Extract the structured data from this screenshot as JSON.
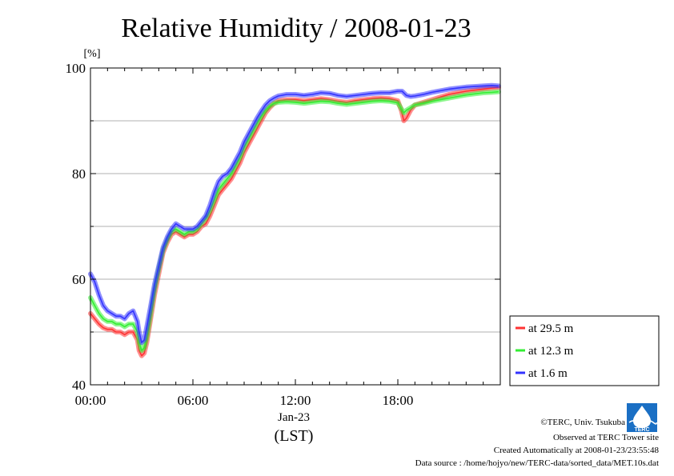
{
  "chart_data": {
    "type": "line",
    "title": "Relative Humidity / 2008-01-23",
    "ylabel": "[%]",
    "xlabel": "(LST)",
    "date_label": "Jan-23",
    "ylim": [
      40,
      100
    ],
    "xlim": [
      0,
      24
    ],
    "y_ticks": [
      40,
      60,
      80,
      100
    ],
    "x_ticks": [
      {
        "value": 0,
        "label": "00:00"
      },
      {
        "value": 6,
        "label": "06:00"
      },
      {
        "value": 12,
        "label": "12:00"
      },
      {
        "value": 18,
        "label": "18:00"
      }
    ],
    "grid": true,
    "legend_position": "right",
    "series": [
      {
        "name": "at 29.5 m",
        "color": "#ff3333",
        "points": [
          [
            0,
            53.5
          ],
          [
            0.25,
            52.5
          ],
          [
            0.5,
            51.5
          ],
          [
            0.75,
            50.8
          ],
          [
            1.0,
            50.5
          ],
          [
            1.25,
            50.5
          ],
          [
            1.5,
            50.0
          ],
          [
            1.75,
            50.0
          ],
          [
            2.0,
            49.5
          ],
          [
            2.25,
            50.0
          ],
          [
            2.5,
            50.0
          ],
          [
            2.75,
            48.5
          ],
          [
            2.85,
            46.5
          ],
          [
            3.0,
            45.5
          ],
          [
            3.15,
            46.0
          ],
          [
            3.3,
            48.0
          ],
          [
            3.5,
            52.0
          ],
          [
            3.75,
            57.0
          ],
          [
            4.0,
            61.0
          ],
          [
            4.25,
            65.0
          ],
          [
            4.5,
            67.0
          ],
          [
            4.75,
            68.5
          ],
          [
            5.0,
            69.0
          ],
          [
            5.25,
            68.5
          ],
          [
            5.5,
            68.0
          ],
          [
            5.75,
            68.5
          ],
          [
            6.0,
            68.5
          ],
          [
            6.25,
            69.0
          ],
          [
            6.5,
            70.0
          ],
          [
            6.75,
            70.5
          ],
          [
            7.0,
            72.0
          ],
          [
            7.25,
            74.0
          ],
          [
            7.5,
            76.0
          ],
          [
            7.75,
            77.0
          ],
          [
            8.0,
            78.0
          ],
          [
            8.25,
            79.0
          ],
          [
            8.5,
            80.5
          ],
          [
            8.75,
            82.0
          ],
          [
            9.0,
            84.0
          ],
          [
            9.25,
            85.5
          ],
          [
            9.5,
            87.0
          ],
          [
            9.75,
            88.5
          ],
          [
            10.0,
            90.0
          ],
          [
            10.25,
            91.5
          ],
          [
            10.5,
            92.5
          ],
          [
            10.75,
            93.3
          ],
          [
            11.0,
            93.8
          ],
          [
            11.5,
            94.0
          ],
          [
            12.0,
            94.0
          ],
          [
            12.5,
            93.8
          ],
          [
            13.0,
            94.0
          ],
          [
            13.5,
            94.2
          ],
          [
            14.0,
            94.0
          ],
          [
            14.5,
            93.7
          ],
          [
            15.0,
            93.5
          ],
          [
            15.5,
            93.8
          ],
          [
            16.0,
            94.0
          ],
          [
            16.5,
            94.2
          ],
          [
            17.0,
            94.3
          ],
          [
            17.5,
            94.2
          ],
          [
            18.0,
            93.8
          ],
          [
            18.2,
            92.0
          ],
          [
            18.35,
            90.0
          ],
          [
            18.5,
            90.5
          ],
          [
            18.75,
            92.0
          ],
          [
            19.0,
            93.0
          ],
          [
            19.5,
            93.5
          ],
          [
            20.0,
            94.0
          ],
          [
            20.5,
            94.5
          ],
          [
            21.0,
            95.0
          ],
          [
            21.5,
            95.3
          ],
          [
            22.0,
            95.6
          ],
          [
            22.5,
            95.8
          ],
          [
            23.0,
            96.0
          ],
          [
            23.5,
            96.2
          ],
          [
            23.9,
            96.3
          ]
        ]
      },
      {
        "name": "at 12.3 m",
        "color": "#33ee33",
        "points": [
          [
            0,
            56.5
          ],
          [
            0.25,
            55.0
          ],
          [
            0.5,
            53.5
          ],
          [
            0.75,
            52.5
          ],
          [
            1.0,
            52.0
          ],
          [
            1.25,
            52.0
          ],
          [
            1.5,
            51.5
          ],
          [
            1.75,
            51.5
          ],
          [
            2.0,
            51.0
          ],
          [
            2.25,
            51.5
          ],
          [
            2.5,
            51.5
          ],
          [
            2.75,
            50.0
          ],
          [
            2.85,
            48.0
          ],
          [
            3.0,
            46.5
          ],
          [
            3.15,
            47.0
          ],
          [
            3.3,
            49.0
          ],
          [
            3.5,
            53.0
          ],
          [
            3.75,
            58.0
          ],
          [
            4.0,
            62.0
          ],
          [
            4.25,
            65.5
          ],
          [
            4.5,
            67.5
          ],
          [
            4.75,
            69.0
          ],
          [
            5.0,
            69.5
          ],
          [
            5.25,
            69.0
          ],
          [
            5.5,
            68.5
          ],
          [
            5.75,
            69.0
          ],
          [
            6.0,
            69.0
          ],
          [
            6.25,
            69.5
          ],
          [
            6.5,
            70.5
          ],
          [
            6.75,
            71.5
          ],
          [
            7.0,
            73.0
          ],
          [
            7.25,
            75.0
          ],
          [
            7.5,
            77.0
          ],
          [
            7.75,
            78.0
          ],
          [
            8.0,
            79.0
          ],
          [
            8.25,
            80.0
          ],
          [
            8.5,
            81.5
          ],
          [
            8.75,
            83.0
          ],
          [
            9.0,
            85.0
          ],
          [
            9.25,
            86.5
          ],
          [
            9.5,
            88.0
          ],
          [
            9.75,
            89.5
          ],
          [
            10.0,
            90.8
          ],
          [
            10.25,
            92.0
          ],
          [
            10.5,
            92.8
          ],
          [
            10.75,
            93.3
          ],
          [
            11.0,
            93.5
          ],
          [
            11.5,
            93.6
          ],
          [
            12.0,
            93.5
          ],
          [
            12.5,
            93.3
          ],
          [
            13.0,
            93.5
          ],
          [
            13.5,
            93.7
          ],
          [
            14.0,
            93.6
          ],
          [
            14.5,
            93.3
          ],
          [
            15.0,
            93.1
          ],
          [
            15.5,
            93.3
          ],
          [
            16.0,
            93.5
          ],
          [
            16.5,
            93.7
          ],
          [
            17.0,
            93.8
          ],
          [
            17.5,
            93.7
          ],
          [
            18.0,
            93.4
          ],
          [
            18.2,
            92.3
          ],
          [
            18.35,
            91.5
          ],
          [
            18.5,
            92.0
          ],
          [
            18.75,
            92.5
          ],
          [
            19.0,
            93.0
          ],
          [
            19.5,
            93.3
          ],
          [
            20.0,
            93.7
          ],
          [
            20.5,
            94.0
          ],
          [
            21.0,
            94.3
          ],
          [
            21.5,
            94.6
          ],
          [
            22.0,
            94.9
          ],
          [
            22.5,
            95.1
          ],
          [
            23.0,
            95.3
          ],
          [
            23.5,
            95.4
          ],
          [
            23.9,
            95.5
          ]
        ]
      },
      {
        "name": "at 1.6 m",
        "color": "#3333ff",
        "points": [
          [
            0,
            61.0
          ],
          [
            0.25,
            59.5
          ],
          [
            0.5,
            57.0
          ],
          [
            0.75,
            55.0
          ],
          [
            1.0,
            54.0
          ],
          [
            1.25,
            53.5
          ],
          [
            1.5,
            53.0
          ],
          [
            1.75,
            53.0
          ],
          [
            2.0,
            52.5
          ],
          [
            2.25,
            53.5
          ],
          [
            2.5,
            54.0
          ],
          [
            2.75,
            52.0
          ],
          [
            2.85,
            50.0
          ],
          [
            3.0,
            48.0
          ],
          [
            3.15,
            48.5
          ],
          [
            3.3,
            51.0
          ],
          [
            3.5,
            54.5
          ],
          [
            3.75,
            59.0
          ],
          [
            4.0,
            62.5
          ],
          [
            4.25,
            66.0
          ],
          [
            4.5,
            68.0
          ],
          [
            4.75,
            69.5
          ],
          [
            5.0,
            70.5
          ],
          [
            5.25,
            70.0
          ],
          [
            5.5,
            69.5
          ],
          [
            5.75,
            69.5
          ],
          [
            6.0,
            69.5
          ],
          [
            6.25,
            70.0
          ],
          [
            6.5,
            71.0
          ],
          [
            6.75,
            72.0
          ],
          [
            7.0,
            74.0
          ],
          [
            7.25,
            76.5
          ],
          [
            7.5,
            78.5
          ],
          [
            7.75,
            79.5
          ],
          [
            8.0,
            80.0
          ],
          [
            8.25,
            81.0
          ],
          [
            8.5,
            82.5
          ],
          [
            8.75,
            84.0
          ],
          [
            9.0,
            86.0
          ],
          [
            9.25,
            87.5
          ],
          [
            9.5,
            89.0
          ],
          [
            9.75,
            90.5
          ],
          [
            10.0,
            91.8
          ],
          [
            10.25,
            93.0
          ],
          [
            10.5,
            93.8
          ],
          [
            10.75,
            94.3
          ],
          [
            11.0,
            94.7
          ],
          [
            11.5,
            95.0
          ],
          [
            12.0,
            95.0
          ],
          [
            12.5,
            94.8
          ],
          [
            13.0,
            95.0
          ],
          [
            13.5,
            95.3
          ],
          [
            14.0,
            95.2
          ],
          [
            14.5,
            94.8
          ],
          [
            15.0,
            94.6
          ],
          [
            15.5,
            94.8
          ],
          [
            16.0,
            95.0
          ],
          [
            16.5,
            95.2
          ],
          [
            17.0,
            95.3
          ],
          [
            17.5,
            95.3
          ],
          [
            18.0,
            95.6
          ],
          [
            18.25,
            95.6
          ],
          [
            18.5,
            94.8
          ],
          [
            18.75,
            94.6
          ],
          [
            19.0,
            94.7
          ],
          [
            19.5,
            95.0
          ],
          [
            20.0,
            95.4
          ],
          [
            20.5,
            95.7
          ],
          [
            21.0,
            96.0
          ],
          [
            21.5,
            96.2
          ],
          [
            22.0,
            96.4
          ],
          [
            22.5,
            96.5
          ],
          [
            23.0,
            96.6
          ],
          [
            23.5,
            96.7
          ],
          [
            23.9,
            96.6
          ]
        ]
      }
    ]
  },
  "footer": {
    "copyright": "©TERC, Univ. Tsukuba",
    "observed": "Observed at TERC Tower site",
    "created": "Created Automatically at 2008-01-23/23:55:48",
    "source": "Data source : /home/hojyo/new/TERC-data/sorted_data/MET.10s.dat",
    "logo_text": "TERC"
  }
}
